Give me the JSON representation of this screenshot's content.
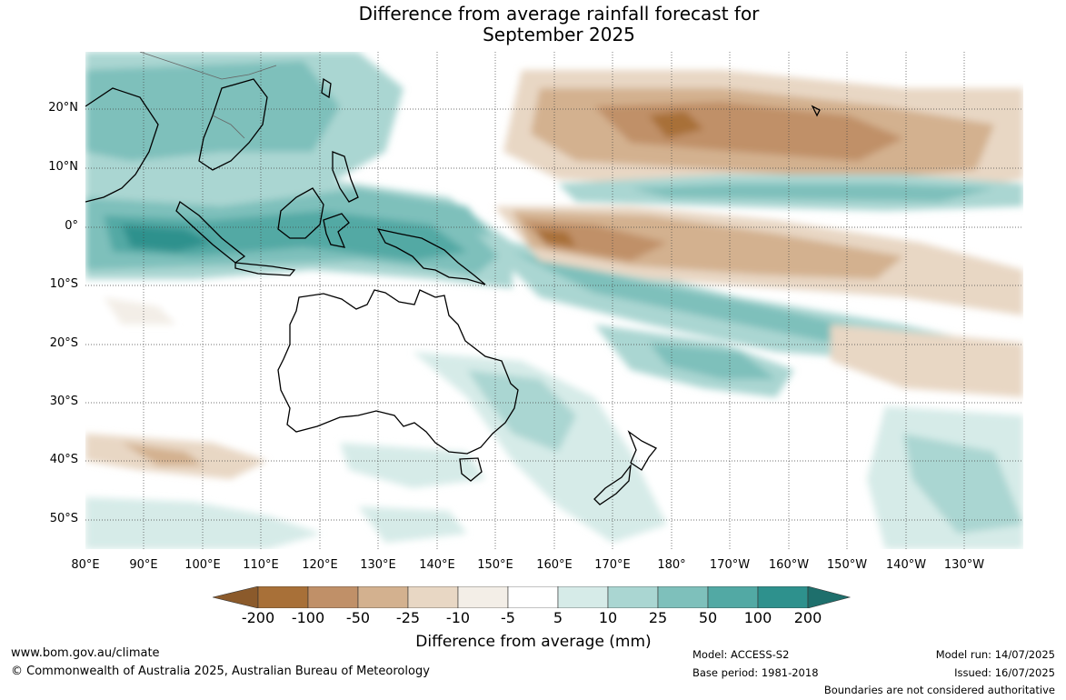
{
  "title_line1": "Difference from average rainfall forecast for",
  "title_line2": "September 2025",
  "lat_labels": [
    "20°N",
    "10°N",
    "0°",
    "10°S",
    "20°S",
    "30°S",
    "40°S",
    "50°S"
  ],
  "lon_labels": [
    "80°E",
    "90°E",
    "100°E",
    "110°E",
    "120°E",
    "130°E",
    "140°E",
    "150°E",
    "160°E",
    "170°E",
    "180°",
    "170°W",
    "160°W",
    "150°W",
    "140°W",
    "130°W"
  ],
  "colorbar": {
    "ticks": [
      "-200",
      "-100",
      "-50",
      "-25",
      "-10",
      "-5",
      "5",
      "10",
      "25",
      "50",
      "100",
      "200"
    ],
    "colors": [
      "#8b5a2b",
      "#a87038",
      "#c09068",
      "#d3b18f",
      "#e8d7c4",
      "#f3eee7",
      "#ffffff",
      "#d6ebe8",
      "#aad6d2",
      "#7ec0bb",
      "#52a9a4",
      "#2e918d",
      "#1e6f6c"
    ],
    "label": "Difference from average (mm)"
  },
  "footer": {
    "website": "www.bom.gov.au/climate",
    "copyright": "© Commonwealth of Australia 2025, Australian Bureau of Meteorology",
    "model": "Model: ACCESS-S2",
    "base_period": "Base period: 1981-2018",
    "model_run": "Model run: 14/07/2025",
    "issued": "Issued: 16/07/2025",
    "disclaimer": "Boundaries are not considered authoritative"
  }
}
